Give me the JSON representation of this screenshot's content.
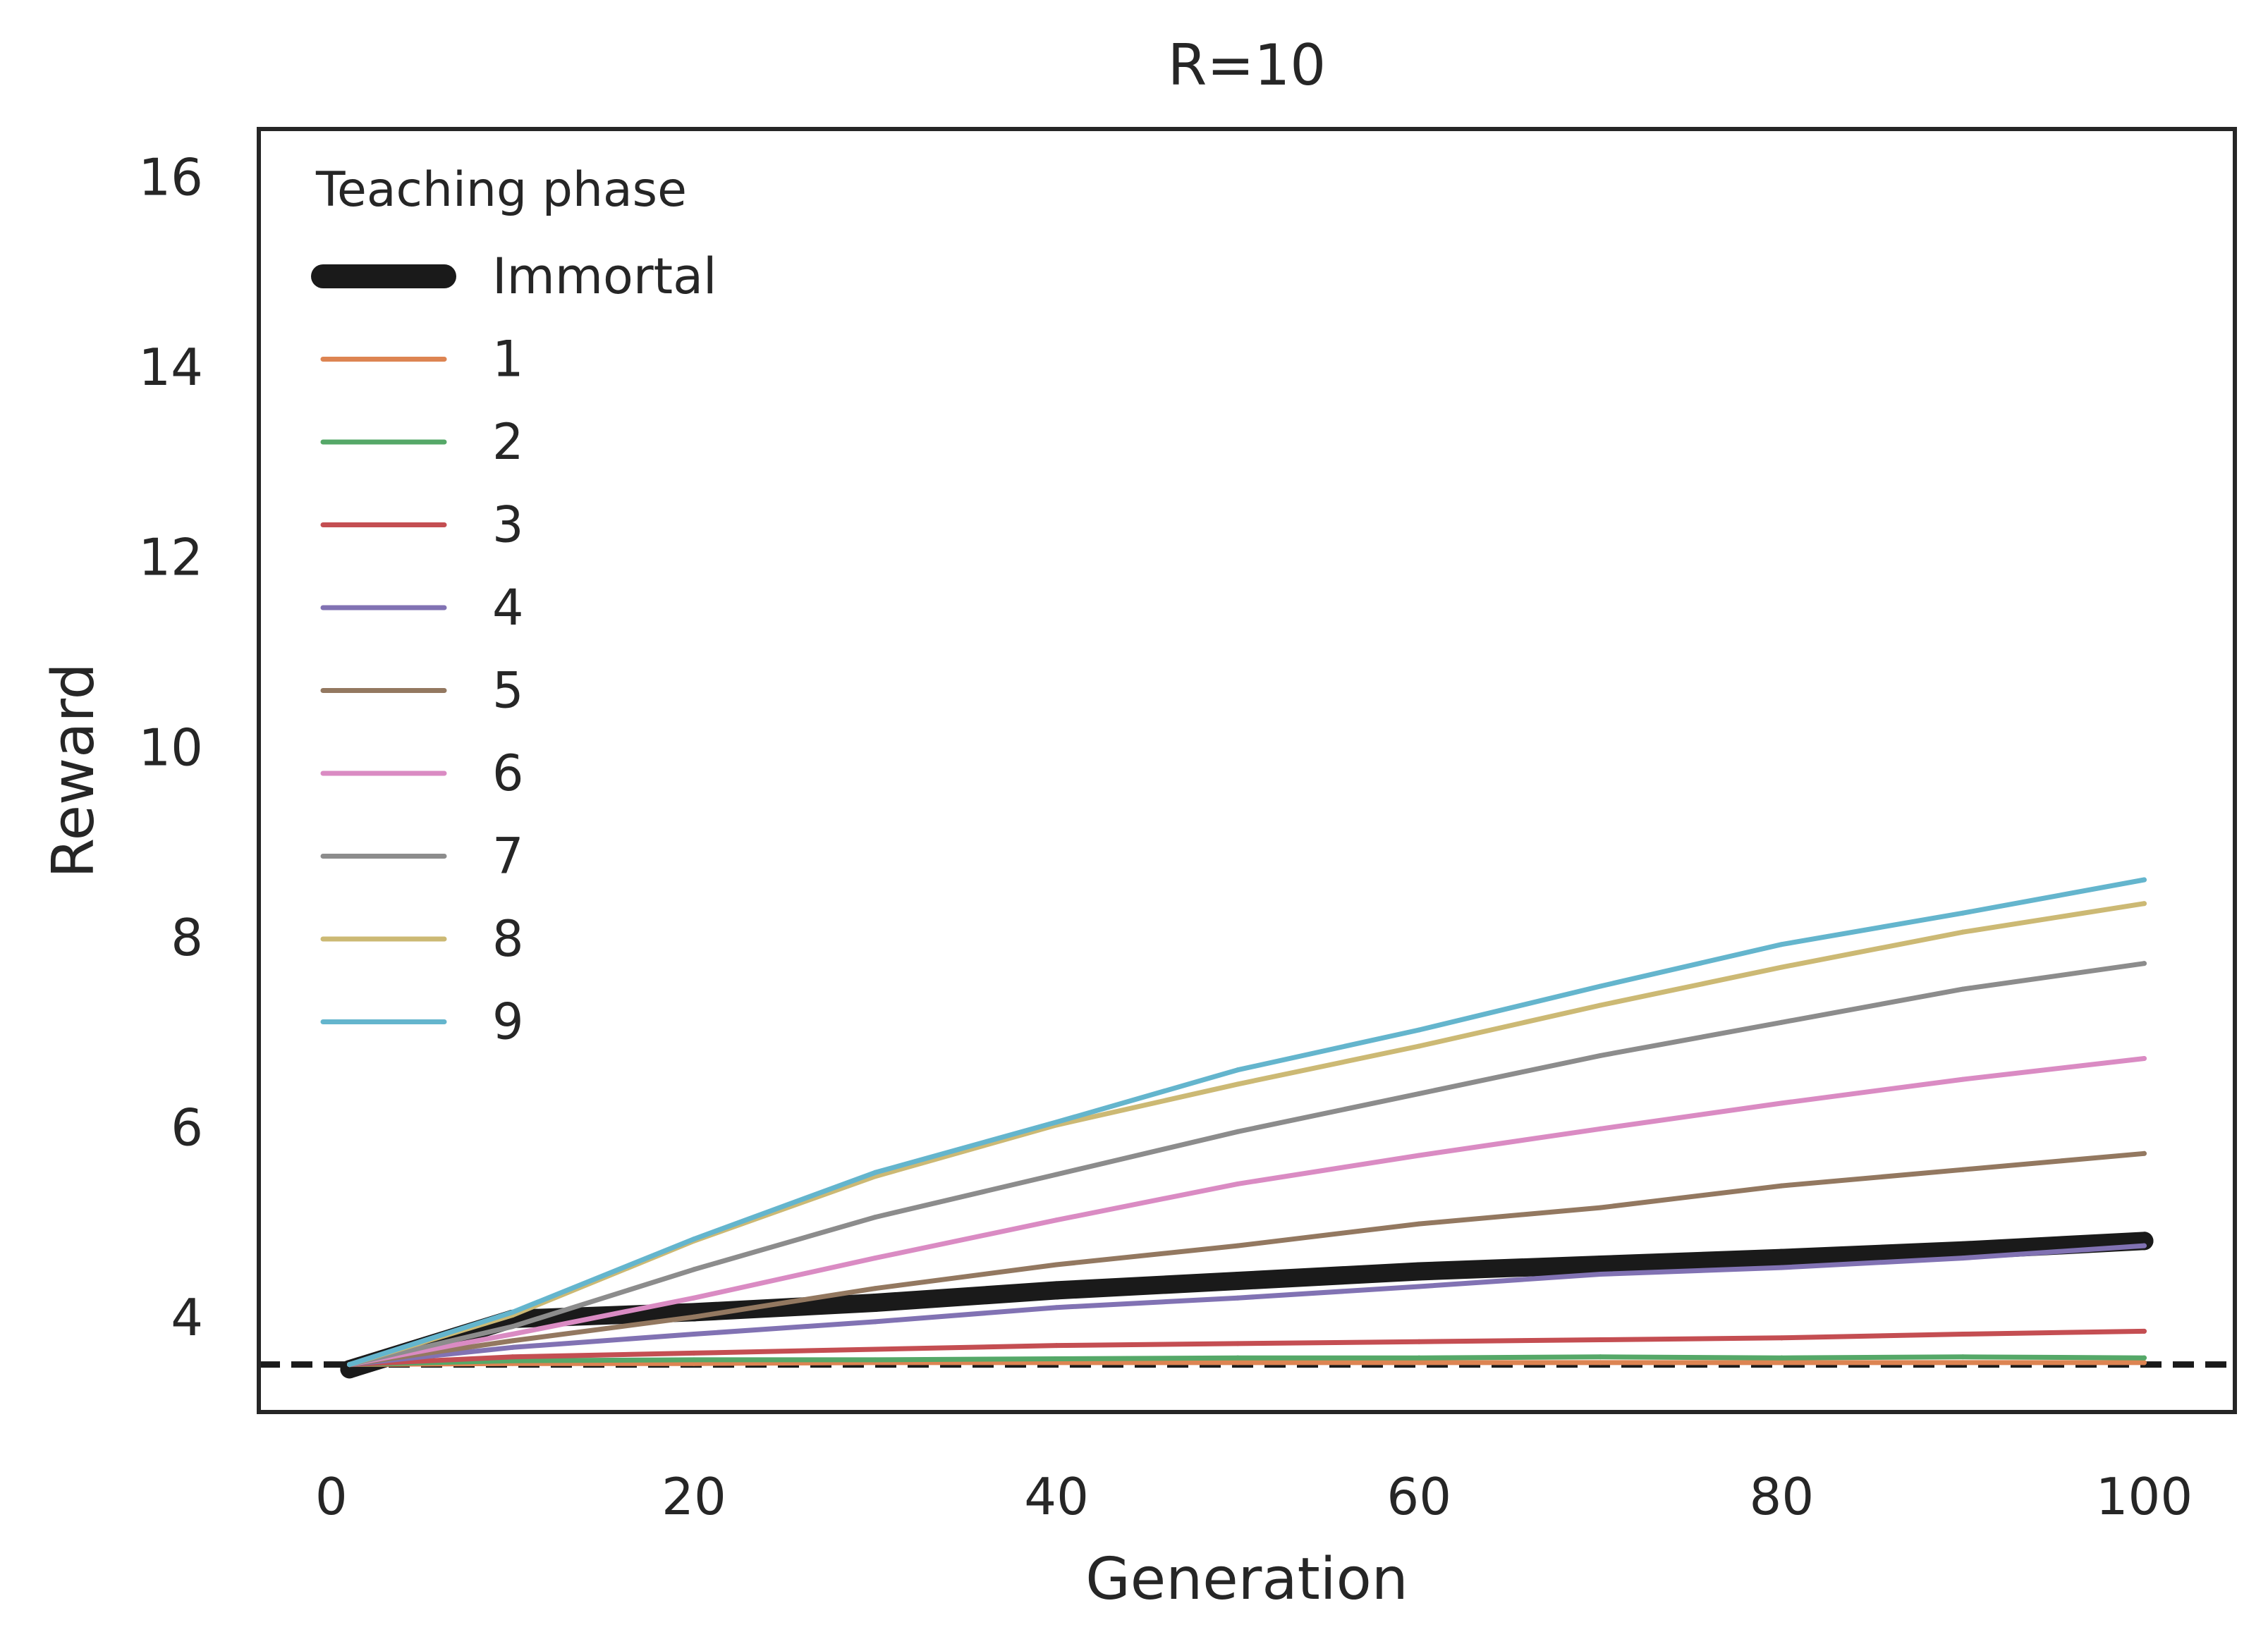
{
  "chart_data": {
    "type": "line",
    "title": "R=10",
    "xlabel": "Generation",
    "ylabel": "Reward",
    "xlim": [
      -4,
      105
    ],
    "ylim": [
      3.0,
      16.5
    ],
    "xticks": [
      0,
      20,
      40,
      60,
      80,
      100
    ],
    "yticks": [
      4,
      6,
      8,
      10,
      12,
      14,
      16
    ],
    "grid": false,
    "legend": {
      "title": "Teaching phase",
      "placement": "top-left"
    },
    "baseline": {
      "y": 3.5,
      "style": "dashed",
      "color": "#1a1a1a"
    },
    "x": [
      1,
      10,
      20,
      30,
      40,
      50,
      60,
      70,
      80,
      90,
      100
    ],
    "series": [
      {
        "name": "Immortal",
        "color": "#1a1a1a",
        "emphasis": true,
        "values": [
          3.45,
          3.98,
          4.05,
          4.15,
          4.28,
          4.38,
          4.48,
          4.55,
          4.62,
          4.7,
          4.8
        ]
      },
      {
        "name": "1",
        "color": "#dd8452",
        "values": [
          3.5,
          3.51,
          3.51,
          3.52,
          3.52,
          3.52,
          3.52,
          3.52,
          3.52,
          3.52,
          3.52
        ]
      },
      {
        "name": "2",
        "color": "#55a868",
        "values": [
          3.5,
          3.54,
          3.55,
          3.55,
          3.56,
          3.57,
          3.57,
          3.58,
          3.57,
          3.58,
          3.57
        ]
      },
      {
        "name": "3",
        "color": "#c44e52",
        "values": [
          3.5,
          3.58,
          3.62,
          3.66,
          3.7,
          3.72,
          3.74,
          3.76,
          3.78,
          3.82,
          3.85
        ]
      },
      {
        "name": "4",
        "color": "#8172b3",
        "values": [
          3.5,
          3.68,
          3.82,
          3.95,
          4.1,
          4.2,
          4.32,
          4.45,
          4.52,
          4.62,
          4.75
        ]
      },
      {
        "name": "5",
        "color": "#937860",
        "values": [
          3.5,
          3.75,
          4.0,
          4.3,
          4.55,
          4.75,
          4.98,
          5.15,
          5.38,
          5.55,
          5.72
        ]
      },
      {
        "name": "6",
        "color": "#da8bc3",
        "values": [
          3.5,
          3.82,
          4.2,
          4.62,
          5.02,
          5.4,
          5.7,
          5.98,
          6.25,
          6.5,
          6.72
        ]
      },
      {
        "name": "7",
        "color": "#8c8c8c",
        "values": [
          3.5,
          3.9,
          4.5,
          5.05,
          5.5,
          5.95,
          6.35,
          6.75,
          7.1,
          7.45,
          7.72
        ]
      },
      {
        "name": "8",
        "color": "#ccb974",
        "values": [
          3.5,
          4.02,
          4.8,
          5.48,
          6.02,
          6.45,
          6.85,
          7.28,
          7.68,
          8.05,
          8.35
        ]
      },
      {
        "name": "9",
        "color": "#64b5cd",
        "values": [
          3.5,
          4.05,
          4.82,
          5.52,
          6.05,
          6.6,
          7.02,
          7.48,
          7.92,
          8.25,
          8.6
        ]
      }
    ]
  }
}
